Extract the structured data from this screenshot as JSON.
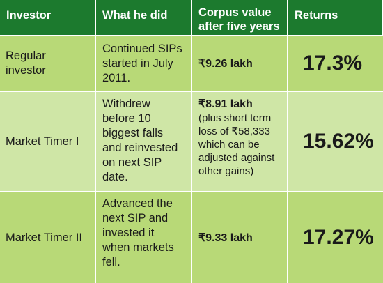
{
  "table": {
    "headers": {
      "investor": "Investor",
      "action": "What he did",
      "corpus": "Corpus value after five years",
      "returns": "Returns"
    },
    "rows": [
      {
        "investor": "Regular investor",
        "action": "Continued SIPs started in July 2011.",
        "corpus_amount": "₹9.26 lakh",
        "corpus_note": "",
        "returns": "17.3%"
      },
      {
        "investor": "Market Timer I",
        "action": "Withdrew before 10 biggest falls and reinvested on next SIP date.",
        "corpus_amount": "₹8.91 lakh",
        "corpus_note": "(plus short term loss of ₹58,333 which can be adjusted against other gains)",
        "returns": "15.62%"
      },
      {
        "investor": "Market Timer II",
        "action": "Advanced the next SIP and invested it when markets fell.",
        "corpus_amount": "₹9.33 lakh",
        "corpus_note": "",
        "returns": "17.27%"
      }
    ]
  },
  "colors": {
    "header_bg": "#1c7a2e",
    "row_dark": "#b8d977",
    "row_light": "#cfe6a6"
  }
}
